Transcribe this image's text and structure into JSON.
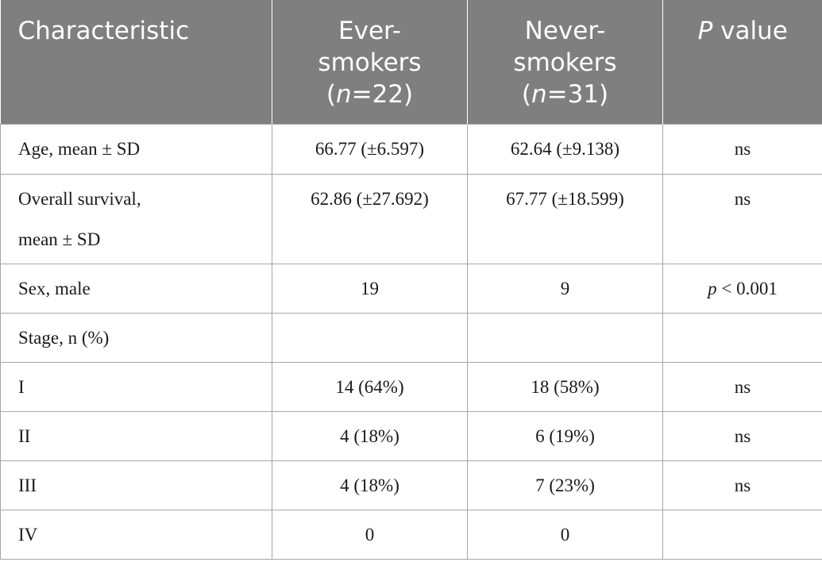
{
  "header": {
    "characteristic": "Characteristic",
    "ever_line1": "Ever-",
    "ever_line2": "smokers",
    "ever_n_label": "n",
    "ever_n_value": "=22)",
    "never_line1": "Never-",
    "never_line2": "smokers",
    "never_n_label": "n",
    "never_n_value": "=31)",
    "p_letter": "P",
    "p_rest": " value"
  },
  "rows": [
    {
      "characteristic": "Age, mean ± SD",
      "ever": "66.77 (±6.597)",
      "never": "62.64 (±9.138)",
      "p": "ns"
    },
    {
      "characteristic_line1": "Overall survival,",
      "characteristic_line2": "mean ± SD",
      "ever": "62.86 (±27.692)",
      "never": "67.77 (±18.599)",
      "p": "ns"
    },
    {
      "characteristic": "Sex, male",
      "ever": "19",
      "never": "9",
      "p_letter": "p",
      "p_rest": " < 0.001"
    },
    {
      "characteristic": "Stage, n (%)",
      "ever": "",
      "never": "",
      "p": ""
    },
    {
      "characteristic": "I",
      "ever": "14 (64%)",
      "never": "18 (58%)",
      "p": "ns"
    },
    {
      "characteristic": "II",
      "ever": "4 (18%)",
      "never": "6 (19%)",
      "p": "ns"
    },
    {
      "characteristic": "III",
      "ever": "4 (18%)",
      "never": "7 (23%)",
      "p": "ns"
    },
    {
      "characteristic": "IV",
      "ever": "0",
      "never": "0",
      "p": ""
    }
  ]
}
